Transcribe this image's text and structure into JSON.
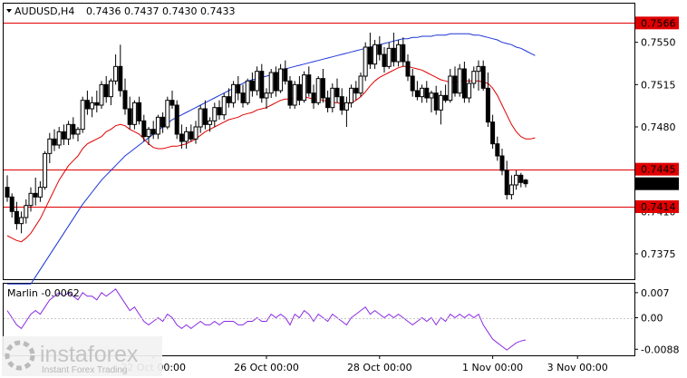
{
  "header": {
    "symbol": "AUDUSD,H4",
    "ohlc": "0.7436 0.7437 0.7430 0.7433"
  },
  "indicator": {
    "label": "Marlin -0.0062"
  },
  "watermark": {
    "brand": "instaforex",
    "tagline": "Instant Forex Trading"
  },
  "colors": {
    "bull": "#ffffff",
    "bear": "#000000",
    "ma_fast": "#e00000",
    "ma_slow": "#1a35d6",
    "level": "#e00000",
    "oscillator": "#8a2be2",
    "price_tag_bg": "#e00000",
    "current_tag_bg": "#000000"
  },
  "chart_data": {
    "type": "candlestick",
    "price_axis": {
      "ylim": [
        0.7354,
        0.7582
      ],
      "ticks": [
        "0.7550",
        "0.7515",
        "0.7480",
        "0.7410",
        "0.7375"
      ]
    },
    "time_axis": {
      "labels": [
        "22 Oct 00:00",
        "26 Oct 00:00",
        "28 Oct 00:00",
        "1 Nov 00:00",
        "3 Nov 00:00"
      ],
      "label_candle_index": [
        31,
        55,
        79,
        103,
        121
      ]
    },
    "levels": [
      {
        "label": "0.7566",
        "value": 0.7566
      },
      {
        "label": "0.7445",
        "value": 0.7445
      },
      {
        "label": "0.7414",
        "value": 0.7414
      }
    ],
    "current_price": {
      "label": "0.7433",
      "value": 0.7433
    },
    "candles": [
      [
        0.743,
        0.744,
        0.7418,
        0.7422
      ],
      [
        0.7422,
        0.7425,
        0.7405,
        0.741
      ],
      [
        0.741,
        0.7418,
        0.7395,
        0.74
      ],
      [
        0.74,
        0.741,
        0.7392,
        0.7405
      ],
      [
        0.7405,
        0.742,
        0.74,
        0.7415
      ],
      [
        0.7415,
        0.743,
        0.741,
        0.7425
      ],
      [
        0.7425,
        0.7438,
        0.7415,
        0.7422
      ],
      [
        0.7422,
        0.7435,
        0.7418,
        0.743
      ],
      [
        0.743,
        0.746,
        0.7428,
        0.7458
      ],
      [
        0.7458,
        0.7475,
        0.745,
        0.747
      ],
      [
        0.747,
        0.7478,
        0.746,
        0.7465
      ],
      [
        0.7465,
        0.748,
        0.7462,
        0.7476
      ],
      [
        0.7476,
        0.7482,
        0.7465,
        0.747
      ],
      [
        0.747,
        0.7485,
        0.7465,
        0.7482
      ],
      [
        0.7482,
        0.7488,
        0.747,
        0.7474
      ],
      [
        0.7474,
        0.748,
        0.7468,
        0.7478
      ],
      [
        0.7478,
        0.7505,
        0.7475,
        0.7502
      ],
      [
        0.7502,
        0.751,
        0.749,
        0.7495
      ],
      [
        0.7495,
        0.7505,
        0.7488,
        0.75
      ],
      [
        0.75,
        0.751,
        0.7492,
        0.7498
      ],
      [
        0.7498,
        0.7518,
        0.7495,
        0.7515
      ],
      [
        0.7515,
        0.7522,
        0.75,
        0.7505
      ],
      [
        0.7505,
        0.752,
        0.7498,
        0.7518
      ],
      [
        0.7518,
        0.754,
        0.7515,
        0.753
      ],
      [
        0.753,
        0.7548,
        0.7505,
        0.751
      ],
      [
        0.751,
        0.752,
        0.749,
        0.7495
      ],
      [
        0.7495,
        0.7505,
        0.7478,
        0.7482
      ],
      [
        0.7482,
        0.7502,
        0.7478,
        0.75
      ],
      [
        0.75,
        0.7505,
        0.7482,
        0.7485
      ],
      [
        0.7485,
        0.749,
        0.7468,
        0.7472
      ],
      [
        0.7472,
        0.748,
        0.7465,
        0.7478
      ],
      [
        0.7478,
        0.7485,
        0.747,
        0.7474
      ],
      [
        0.7474,
        0.749,
        0.747,
        0.7488
      ],
      [
        0.7488,
        0.7492,
        0.7475,
        0.748
      ],
      [
        0.748,
        0.7505,
        0.7478,
        0.7502
      ],
      [
        0.7502,
        0.751,
        0.7495,
        0.7498
      ],
      [
        0.7498,
        0.7502,
        0.747,
        0.7474
      ],
      [
        0.7474,
        0.7482,
        0.7462,
        0.7468
      ],
      [
        0.7468,
        0.748,
        0.7462,
        0.7476
      ],
      [
        0.7476,
        0.7482,
        0.7468,
        0.747
      ],
      [
        0.747,
        0.7485,
        0.7466,
        0.748
      ],
      [
        0.748,
        0.7498,
        0.7475,
        0.7495
      ],
      [
        0.7495,
        0.7502,
        0.7478,
        0.7482
      ],
      [
        0.7482,
        0.7488,
        0.7476,
        0.7485
      ],
      [
        0.7485,
        0.75,
        0.748,
        0.7496
      ],
      [
        0.7496,
        0.7502,
        0.7486,
        0.749
      ],
      [
        0.749,
        0.7508,
        0.7486,
        0.7505
      ],
      [
        0.7505,
        0.7512,
        0.7496,
        0.75
      ],
      [
        0.75,
        0.7518,
        0.7496,
        0.7515
      ],
      [
        0.7515,
        0.7522,
        0.7502,
        0.7508
      ],
      [
        0.7508,
        0.7515,
        0.7496,
        0.75
      ],
      [
        0.75,
        0.752,
        0.7498,
        0.7518
      ],
      [
        0.7518,
        0.7525,
        0.7505,
        0.751
      ],
      [
        0.751,
        0.753,
        0.7506,
        0.7526
      ],
      [
        0.7526,
        0.7532,
        0.75,
        0.7504
      ],
      [
        0.7504,
        0.7512,
        0.7495,
        0.7508
      ],
      [
        0.7508,
        0.7528,
        0.7504,
        0.7525
      ],
      [
        0.7525,
        0.753,
        0.7505,
        0.751
      ],
      [
        0.751,
        0.7532,
        0.7508,
        0.7528
      ],
      [
        0.7528,
        0.7535,
        0.7515,
        0.7518
      ],
      [
        0.7518,
        0.7522,
        0.7495,
        0.7498
      ],
      [
        0.7498,
        0.7518,
        0.7495,
        0.7515
      ],
      [
        0.7515,
        0.7522,
        0.7498,
        0.7502
      ],
      [
        0.7502,
        0.7526,
        0.75,
        0.7523
      ],
      [
        0.7523,
        0.753,
        0.7505,
        0.7508
      ],
      [
        0.7508,
        0.7515,
        0.7495,
        0.75
      ],
      [
        0.75,
        0.7522,
        0.7498,
        0.752
      ],
      [
        0.752,
        0.7528,
        0.75,
        0.7504
      ],
      [
        0.7504,
        0.751,
        0.7492,
        0.7496
      ],
      [
        0.7496,
        0.7516,
        0.7492,
        0.7512
      ],
      [
        0.7512,
        0.752,
        0.75,
        0.7505
      ],
      [
        0.7505,
        0.7512,
        0.749,
        0.7494
      ],
      [
        0.7494,
        0.7505,
        0.748,
        0.75
      ],
      [
        0.75,
        0.7515,
        0.7496,
        0.7512
      ],
      [
        0.7512,
        0.7518,
        0.7502,
        0.7508
      ],
      [
        0.7508,
        0.7525,
        0.7505,
        0.7522
      ],
      [
        0.7522,
        0.755,
        0.7518,
        0.7546
      ],
      [
        0.7546,
        0.7558,
        0.7528,
        0.7532
      ],
      [
        0.7532,
        0.7552,
        0.7528,
        0.7548
      ],
      [
        0.7548,
        0.7555,
        0.7535,
        0.754
      ],
      [
        0.754,
        0.7546,
        0.7525,
        0.753
      ],
      [
        0.753,
        0.755,
        0.7528,
        0.7545
      ],
      [
        0.7545,
        0.7558,
        0.753,
        0.7534
      ],
      [
        0.7534,
        0.7552,
        0.753,
        0.7548
      ],
      [
        0.7548,
        0.7554,
        0.753,
        0.7534
      ],
      [
        0.7534,
        0.754,
        0.7518,
        0.7522
      ],
      [
        0.7522,
        0.7528,
        0.7505,
        0.751
      ],
      [
        0.751,
        0.7518,
        0.7502,
        0.7505
      ],
      [
        0.7505,
        0.7515,
        0.75,
        0.7512
      ],
      [
        0.7512,
        0.7518,
        0.75,
        0.7504
      ],
      [
        0.7504,
        0.751,
        0.7492,
        0.7508
      ],
      [
        0.7508,
        0.7514,
        0.749,
        0.7494
      ],
      [
        0.7494,
        0.751,
        0.7482,
        0.7506
      ],
      [
        0.7506,
        0.7515,
        0.75,
        0.7502
      ],
      [
        0.7502,
        0.7528,
        0.75,
        0.7522
      ],
      [
        0.7522,
        0.753,
        0.7505,
        0.7508
      ],
      [
        0.7508,
        0.7532,
        0.7505,
        0.7528
      ],
      [
        0.7528,
        0.7534,
        0.75,
        0.7504
      ],
      [
        0.7504,
        0.752,
        0.75,
        0.7516
      ],
      [
        0.7516,
        0.753,
        0.7512,
        0.7526
      ],
      [
        0.7526,
        0.7535,
        0.751,
        0.753
      ],
      [
        0.753,
        0.7535,
        0.751,
        0.7512
      ],
      [
        0.7512,
        0.7525,
        0.748,
        0.7484
      ],
      [
        0.7484,
        0.749,
        0.7462,
        0.7466
      ],
      [
        0.7466,
        0.7472,
        0.7452,
        0.7456
      ],
      [
        0.7456,
        0.7462,
        0.744,
        0.7444
      ],
      [
        0.7444,
        0.7452,
        0.742,
        0.7424
      ],
      [
        0.7424,
        0.744,
        0.742,
        0.7432
      ],
      [
        0.7432,
        0.7444,
        0.7428,
        0.744
      ],
      [
        0.744,
        0.7442,
        0.743,
        0.7434
      ],
      [
        0.7436,
        0.7437,
        0.743,
        0.7433
      ]
    ],
    "ma_fast_values": [
      0.739,
      0.7388,
      0.7386,
      0.7385,
      0.7388,
      0.7392,
      0.7398,
      0.7404,
      0.7412,
      0.742,
      0.7428,
      0.7436,
      0.7442,
      0.7448,
      0.7452,
      0.7456,
      0.7462,
      0.7466,
      0.7468,
      0.747,
      0.7472,
      0.7476,
      0.7478,
      0.7481,
      0.7482,
      0.7481,
      0.7478,
      0.7476,
      0.7474,
      0.747,
      0.7466,
      0.7463,
      0.7462,
      0.7462,
      0.7463,
      0.7464,
      0.7464,
      0.7465,
      0.7466,
      0.7468,
      0.747,
      0.7473,
      0.7476,
      0.7478,
      0.748,
      0.7482,
      0.7484,
      0.7486,
      0.7487,
      0.7488,
      0.749,
      0.7491,
      0.7492,
      0.7494,
      0.7495,
      0.7496,
      0.7498,
      0.75,
      0.7502,
      0.7503,
      0.7503,
      0.7504,
      0.7504,
      0.7505,
      0.7504,
      0.7503,
      0.7503,
      0.7502,
      0.7501,
      0.75,
      0.75,
      0.7499,
      0.7499,
      0.75,
      0.7502,
      0.7505,
      0.7509,
      0.7514,
      0.7518,
      0.7521,
      0.7523,
      0.7525,
      0.7527,
      0.7529,
      0.753,
      0.753,
      0.7529,
      0.7528,
      0.7527,
      0.7525,
      0.7523,
      0.7521,
      0.7519,
      0.7518,
      0.7517,
      0.7517,
      0.7518,
      0.7518,
      0.7518,
      0.7518,
      0.7518,
      0.7517,
      0.7516,
      0.7512,
      0.7506,
      0.7498,
      0.749,
      0.7482,
      0.7476,
      0.7472,
      0.747,
      0.747,
      0.7471
    ],
    "ma_slow_values": [
      0.735,
      0.735,
      0.735,
      0.735,
      0.735,
      0.735,
      0.7356,
      0.7362,
      0.7368,
      0.7374,
      0.738,
      0.7386,
      0.7392,
      0.7398,
      0.7404,
      0.741,
      0.7416,
      0.7421,
      0.7426,
      0.7431,
      0.7436,
      0.744,
      0.7444,
      0.7448,
      0.7452,
      0.7456,
      0.7459,
      0.7462,
      0.7465,
      0.7468,
      0.7471,
      0.7474,
      0.7477,
      0.748,
      0.7483,
      0.7486,
      0.7488,
      0.749,
      0.7492,
      0.7494,
      0.7496,
      0.7498,
      0.75,
      0.7502,
      0.7504,
      0.7506,
      0.7508,
      0.751,
      0.7512,
      0.7514,
      0.7516,
      0.7518,
      0.7519,
      0.752,
      0.7521,
      0.7522,
      0.7523,
      0.7524,
      0.7526,
      0.7528,
      0.7529,
      0.753,
      0.7531,
      0.7532,
      0.7533,
      0.7534,
      0.7535,
      0.7536,
      0.7537,
      0.7538,
      0.7539,
      0.754,
      0.7541,
      0.7542,
      0.7543,
      0.7544,
      0.7545,
      0.7546,
      0.7547,
      0.7548,
      0.7549,
      0.755,
      0.7551,
      0.7552,
      0.7553,
      0.7553,
      0.7554,
      0.7554,
      0.7555,
      0.7555,
      0.7555,
      0.7556,
      0.7556,
      0.7556,
      0.7557,
      0.7557,
      0.7557,
      0.7557,
      0.7557,
      0.7556,
      0.7556,
      0.7555,
      0.7554,
      0.7553,
      0.7552,
      0.755,
      0.7549,
      0.7548,
      0.7546,
      0.7545,
      0.7543,
      0.7541,
      0.7539
    ],
    "oscillator": {
      "ylim": [
        -0.0105,
        0.0095
      ],
      "ticks": [
        {
          "label": "0.007",
          "value": 0.007
        },
        {
          "label": "0.00",
          "value": 0.0
        },
        {
          "label": "-0.0088",
          "value": -0.0088
        }
      ],
      "values": [
        0.002,
        0.0,
        -0.002,
        -0.003,
        -0.001,
        0.001,
        0.002,
        0.001,
        0.003,
        0.005,
        0.006,
        0.007,
        0.006,
        0.007,
        0.006,
        0.005,
        0.007,
        0.006,
        0.006,
        0.005,
        0.007,
        0.006,
        0.007,
        0.008,
        0.006,
        0.004,
        0.002,
        0.003,
        0.001,
        -0.001,
        -0.002,
        -0.001,
        0.0,
        -0.001,
        0.001,
        0.0,
        -0.002,
        -0.003,
        -0.002,
        -0.003,
        -0.002,
        -0.001,
        -0.002,
        -0.002,
        -0.001,
        -0.002,
        -0.001,
        -0.001,
        -0.001,
        -0.002,
        -0.002,
        -0.001,
        -0.001,
        0.0,
        -0.001,
        -0.001,
        0.001,
        0.0,
        0.001,
        0.0,
        -0.002,
        0.001,
        0.0,
        0.002,
        0.001,
        -0.001,
        0.001,
        0.0,
        -0.001,
        0.001,
        0.0,
        -0.001,
        -0.002,
        0.0,
        0.001,
        0.002,
        0.003,
        0.001,
        0.002,
        0.001,
        0.0,
        0.001,
        0.0,
        0.001,
        0.0,
        -0.001,
        -0.002,
        -0.001,
        0.0,
        -0.001,
        0.0,
        -0.002,
        0.0,
        -0.001,
        0.001,
        0.0,
        0.001,
        0.0,
        0.001,
        0.0,
        0.001,
        -0.002,
        -0.004,
        -0.006,
        -0.007,
        -0.008,
        -0.009,
        -0.008,
        -0.007,
        -0.0065,
        -0.0062
      ]
    }
  }
}
